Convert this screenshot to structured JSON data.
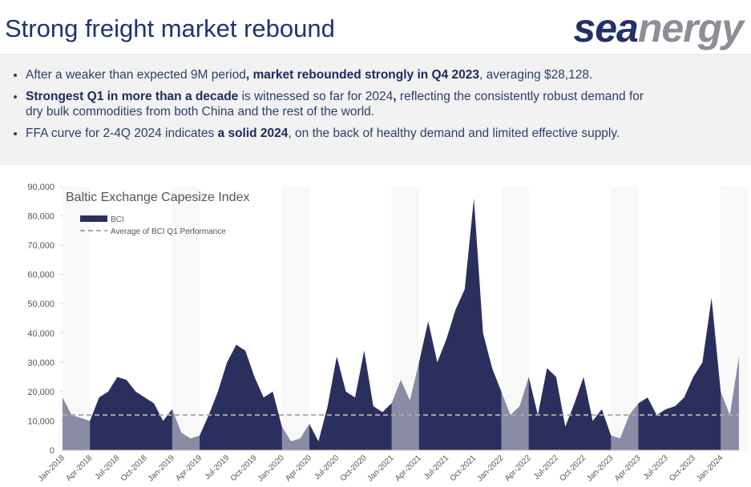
{
  "header": {
    "title": "Strong freight market rebound",
    "logo": [
      "sea",
      "nergy"
    ]
  },
  "bullets": [
    [
      {
        "text": "After a weaker than expected 9M period",
        "bold": false
      },
      {
        "text": ", market rebounded strongly in Q4 2023",
        "bold": true
      },
      {
        "text": ", averaging $28,128.",
        "bold": false
      }
    ],
    [
      {
        "text": "Strongest Q1 in more than a decade",
        "bold": true
      },
      {
        "text": " is witnessed so far for 2024",
        "bold": false
      },
      {
        "text": ",",
        "bold": true
      },
      {
        "text": " reflecting the consistently robust demand for dry bulk commodities from both China and the rest of the world.",
        "bold": false
      }
    ],
    [
      {
        "text": "FFA curve for 2-4Q 2024 indicates ",
        "bold": false
      },
      {
        "text": "a solid 2024",
        "bold": true
      },
      {
        "text": ", on the back of healthy demand and limited effective supply.",
        "bold": false
      }
    ]
  ],
  "chart_data": {
    "type": "area",
    "title": "Baltic Exchange Capesize Index",
    "categories": [
      "Jan-2018",
      null,
      null,
      "Apr-2018",
      null,
      null,
      "Jul-2018",
      null,
      null,
      "Oct-2018",
      null,
      null,
      "Jan-2019",
      null,
      null,
      "Apr-2019",
      null,
      null,
      "Jul-2019",
      null,
      null,
      "Oct-2019",
      null,
      null,
      "Jan-2020",
      null,
      null,
      "Apr-2020",
      null,
      null,
      "Jul-2020",
      null,
      null,
      "Oct-2020",
      null,
      null,
      "Jan-2021",
      null,
      null,
      "Apr-2021",
      null,
      null,
      "Jul-2021",
      null,
      null,
      "Oct-2021",
      null,
      null,
      "Jan-2022",
      null,
      null,
      "Apr-2022",
      null,
      null,
      "Jul-2022",
      null,
      null,
      "Oct-2022",
      null,
      null,
      "Jan-2023",
      null,
      null,
      "Apr-2023",
      null,
      null,
      "Jul-2023",
      null,
      null,
      "Oct-2023",
      null,
      null,
      "Jan-2024",
      null,
      null
    ],
    "series": [
      {
        "name": "BCI",
        "color": "#2b2f5e",
        "values": [
          18000,
          12000,
          11000,
          10000,
          18000,
          20000,
          25000,
          24000,
          20000,
          18000,
          16000,
          10000,
          14000,
          6000,
          4000,
          5000,
          12000,
          20000,
          30000,
          36000,
          34000,
          25000,
          18000,
          20000,
          8000,
          3000,
          4000,
          9000,
          3000,
          15000,
          32000,
          20000,
          18000,
          34000,
          15000,
          13000,
          16000,
          24000,
          17000,
          30000,
          44000,
          30000,
          38000,
          48000,
          55000,
          86000,
          40000,
          28000,
          20000,
          12000,
          15000,
          25000,
          12000,
          28000,
          25000,
          8000,
          16000,
          25000,
          10000,
          14000,
          5000,
          4000,
          12000,
          16000,
          18000,
          12000,
          14000,
          15000,
          18000,
          25000,
          30000,
          52000,
          20000,
          12000,
          32000
        ]
      }
    ],
    "average_line": {
      "name": "Average of BCI Q1 Performance",
      "value": 12000,
      "color": "#aaaaaa"
    },
    "q1_shading": true,
    "ylim": [
      0,
      90000
    ],
    "yticks": [
      0,
      {
        "value": 10000,
        "label": "10,000"
      },
      {
        "value": 20000,
        "label": "20,000"
      },
      {
        "value": 30000,
        "label": "30,000"
      },
      {
        "value": 40000,
        "label": "40,000"
      },
      {
        "value": 50000,
        "label": "50,000"
      },
      {
        "value": 60000,
        "label": "60,000"
      },
      {
        "value": 70000,
        "label": "70,000"
      },
      {
        "value": 80000,
        "label": "80,000"
      },
      {
        "value": 90000,
        "label": "90,000"
      }
    ]
  }
}
